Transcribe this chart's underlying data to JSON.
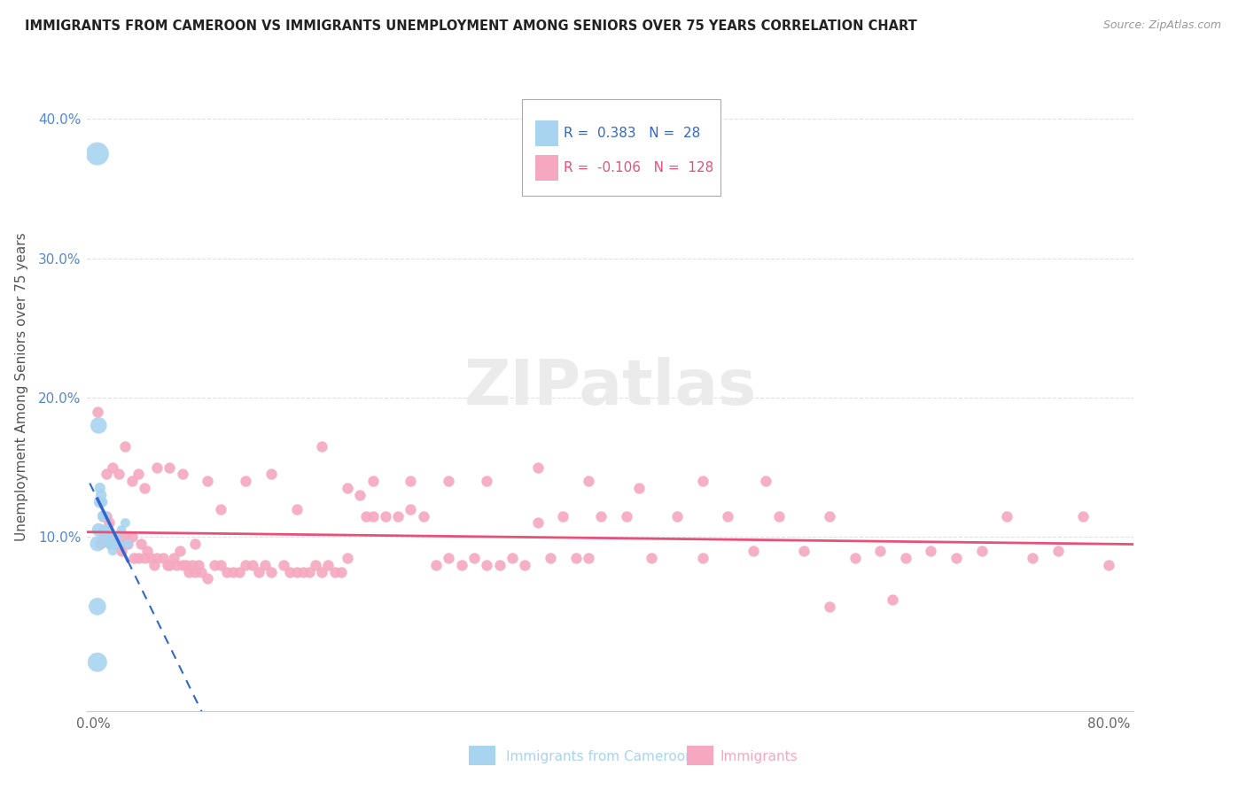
{
  "title": "IMMIGRANTS FROM CAMEROON VS IMMIGRANTS UNEMPLOYMENT AMONG SENIORS OVER 75 YEARS CORRELATION CHART",
  "source": "Source: ZipAtlas.com",
  "ylabel": "Unemployment Among Seniors over 75 years",
  "xlim": [
    -0.005,
    0.82
  ],
  "ylim": [
    -0.025,
    0.44
  ],
  "xtick_vals": [
    0.0,
    0.1,
    0.2,
    0.3,
    0.4,
    0.5,
    0.6,
    0.7,
    0.8
  ],
  "xtick_labels": [
    "0.0%",
    "",
    "",
    "",
    "",
    "",
    "",
    "",
    "80.0%"
  ],
  "ytick_vals": [
    0.0,
    0.1,
    0.2,
    0.3,
    0.4
  ],
  "ytick_labels": [
    "",
    "10.0%",
    "20.0%",
    "30.0%",
    "40.0%"
  ],
  "legend_blue_R": "0.383",
  "legend_blue_N": "28",
  "legend_pink_R": "-0.106",
  "legend_pink_N": "128",
  "blue_color": "#a8d4f0",
  "pink_color": "#f5a8bf",
  "blue_line_color": "#3366cc",
  "pink_line_color": "#e8507a",
  "grid_color": "#e0e0e0",
  "blue_scatter_x": [
    0.003,
    0.004,
    0.005,
    0.005,
    0.006,
    0.007,
    0.007,
    0.008,
    0.008,
    0.009,
    0.01,
    0.01,
    0.011,
    0.012,
    0.013,
    0.014,
    0.015,
    0.016,
    0.017,
    0.018,
    0.02,
    0.022,
    0.025,
    0.027,
    0.003,
    0.003,
    0.003,
    0.004
  ],
  "blue_scatter_y": [
    0.375,
    0.105,
    0.125,
    0.135,
    0.13,
    0.125,
    0.115,
    0.115,
    0.105,
    0.115,
    0.105,
    0.1,
    0.1,
    0.095,
    0.095,
    0.095,
    0.09,
    0.095,
    0.095,
    0.1,
    0.095,
    0.105,
    0.11,
    0.095,
    0.05,
    0.095,
    0.01,
    0.18
  ],
  "blue_scatter_sizes": [
    350,
    120,
    100,
    80,
    80,
    70,
    70,
    70,
    70,
    70,
    70,
    70,
    60,
    60,
    60,
    60,
    60,
    60,
    60,
    60,
    60,
    60,
    60,
    60,
    200,
    150,
    250,
    180
  ],
  "pink_scatter_x": [
    0.003,
    0.005,
    0.007,
    0.008,
    0.01,
    0.012,
    0.013,
    0.015,
    0.017,
    0.018,
    0.02,
    0.022,
    0.025,
    0.027,
    0.03,
    0.032,
    0.035,
    0.037,
    0.04,
    0.042,
    0.045,
    0.048,
    0.05,
    0.055,
    0.058,
    0.06,
    0.063,
    0.065,
    0.068,
    0.07,
    0.073,
    0.075,
    0.078,
    0.08,
    0.083,
    0.085,
    0.09,
    0.095,
    0.1,
    0.105,
    0.11,
    0.115,
    0.12,
    0.125,
    0.13,
    0.135,
    0.14,
    0.15,
    0.155,
    0.16,
    0.165,
    0.17,
    0.175,
    0.18,
    0.185,
    0.19,
    0.195,
    0.2,
    0.21,
    0.215,
    0.22,
    0.23,
    0.24,
    0.25,
    0.26,
    0.27,
    0.28,
    0.29,
    0.3,
    0.31,
    0.32,
    0.33,
    0.34,
    0.35,
    0.36,
    0.37,
    0.38,
    0.39,
    0.4,
    0.42,
    0.44,
    0.46,
    0.48,
    0.5,
    0.52,
    0.54,
    0.56,
    0.58,
    0.6,
    0.62,
    0.64,
    0.66,
    0.68,
    0.7,
    0.72,
    0.74,
    0.76,
    0.78,
    0.8,
    0.01,
    0.015,
    0.02,
    0.025,
    0.03,
    0.035,
    0.04,
    0.05,
    0.06,
    0.07,
    0.08,
    0.09,
    0.1,
    0.12,
    0.14,
    0.16,
    0.18,
    0.2,
    0.22,
    0.25,
    0.28,
    0.31,
    0.35,
    0.39,
    0.43,
    0.48,
    0.53,
    0.58,
    0.63
  ],
  "pink_scatter_y": [
    0.19,
    0.095,
    0.115,
    0.1,
    0.115,
    0.11,
    0.095,
    0.095,
    0.1,
    0.095,
    0.095,
    0.09,
    0.1,
    0.095,
    0.1,
    0.085,
    0.085,
    0.095,
    0.085,
    0.09,
    0.085,
    0.08,
    0.085,
    0.085,
    0.08,
    0.08,
    0.085,
    0.08,
    0.09,
    0.08,
    0.08,
    0.075,
    0.08,
    0.075,
    0.08,
    0.075,
    0.07,
    0.08,
    0.08,
    0.075,
    0.075,
    0.075,
    0.08,
    0.08,
    0.075,
    0.08,
    0.075,
    0.08,
    0.075,
    0.075,
    0.075,
    0.075,
    0.08,
    0.075,
    0.08,
    0.075,
    0.075,
    0.085,
    0.13,
    0.115,
    0.115,
    0.115,
    0.115,
    0.12,
    0.115,
    0.08,
    0.085,
    0.08,
    0.085,
    0.08,
    0.08,
    0.085,
    0.08,
    0.11,
    0.085,
    0.115,
    0.085,
    0.085,
    0.115,
    0.115,
    0.085,
    0.115,
    0.085,
    0.115,
    0.09,
    0.115,
    0.09,
    0.115,
    0.085,
    0.09,
    0.085,
    0.09,
    0.085,
    0.09,
    0.115,
    0.085,
    0.09,
    0.115,
    0.08,
    0.145,
    0.15,
    0.145,
    0.165,
    0.14,
    0.145,
    0.135,
    0.15,
    0.15,
    0.145,
    0.095,
    0.14,
    0.12,
    0.14,
    0.145,
    0.12,
    0.165,
    0.135,
    0.14,
    0.14,
    0.14,
    0.14,
    0.15,
    0.14,
    0.135,
    0.14,
    0.14,
    0.05,
    0.055
  ],
  "pink_scatter_sizes": [
    80,
    80,
    80,
    80,
    80,
    80,
    80,
    80,
    80,
    80,
    80,
    80,
    80,
    80,
    80,
    80,
    80,
    80,
    80,
    80,
    80,
    80,
    80,
    80,
    80,
    80,
    80,
    80,
    80,
    80,
    80,
    80,
    80,
    80,
    80,
    80,
    80,
    80,
    80,
    80,
    80,
    80,
    80,
    80,
    80,
    80,
    80,
    80,
    80,
    80,
    80,
    80,
    80,
    80,
    80,
    80,
    80,
    80,
    80,
    80,
    80,
    80,
    80,
    80,
    80,
    80,
    80,
    80,
    80,
    80,
    80,
    80,
    80,
    80,
    80,
    80,
    80,
    80,
    80,
    80,
    80,
    80,
    80,
    80,
    80,
    80,
    80,
    80,
    80,
    80,
    80,
    80,
    80,
    80,
    80,
    80,
    80,
    80,
    80,
    80,
    80,
    80,
    80,
    80,
    80,
    80,
    80,
    80,
    80,
    80,
    80,
    80,
    80,
    80,
    80,
    80,
    80,
    80,
    80,
    80,
    80,
    80,
    80,
    80,
    80,
    80,
    80,
    80
  ]
}
